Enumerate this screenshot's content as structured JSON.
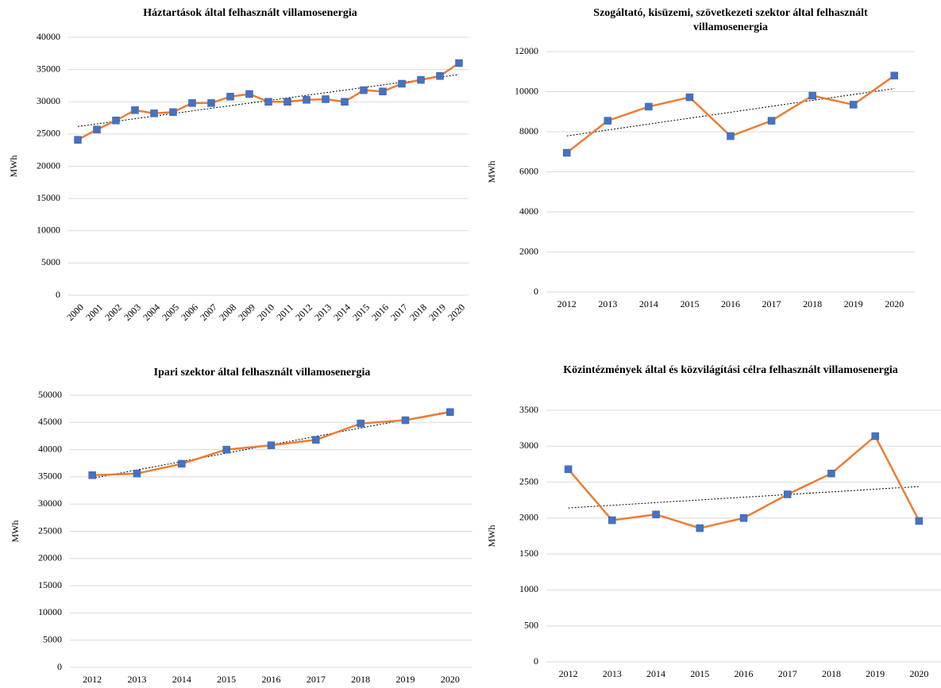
{
  "chart_data": [
    {
      "type": "line",
      "title": "Háztartások által felhasznált villamosenergia",
      "y_label": "MWh",
      "categories": [
        "2000",
        "2001",
        "2002",
        "2003",
        "2004",
        "2005",
        "2006",
        "2007",
        "2008",
        "2009",
        "2010",
        "2011",
        "2012",
        "2013",
        "2014",
        "2015",
        "2016",
        "2017",
        "2018",
        "2019",
        "2020"
      ],
      "values": [
        24100,
        25700,
        27100,
        28700,
        28200,
        28400,
        29800,
        29800,
        30800,
        31200,
        30000,
        30000,
        30300,
        30400,
        30000,
        31800,
        31600,
        32800,
        33400,
        34000,
        36000
      ],
      "color": "#ed7d31",
      "marker_color": "#4472c4",
      "ylim": [
        0,
        40000
      ],
      "yticks": [
        0,
        5000,
        10000,
        15000,
        20000,
        25000,
        30000,
        35000,
        40000
      ],
      "grid": true,
      "trendline": true
    },
    {
      "type": "line",
      "title": "Szogáltató, kisüzemi,  szövetkezeti szektor által felhasznált villamosenergia",
      "y_label": "MWh",
      "categories": [
        "2012",
        "2013",
        "2014",
        "2015",
        "2016",
        "2017",
        "2018",
        "2019",
        "2020"
      ],
      "values": [
        6950,
        8550,
        9250,
        9720,
        7780,
        8550,
        9800,
        9350,
        10800
      ],
      "color": "#ed7d31",
      "marker_color": "#4472c4",
      "ylim": [
        0,
        12000
      ],
      "yticks": [
        0,
        2000,
        4000,
        6000,
        8000,
        10000,
        12000
      ],
      "grid": true,
      "trendline": true
    },
    {
      "type": "line",
      "title": "Ipari szektor által felhasznált villamosenergia",
      "y_label": "MWh",
      "categories": [
        "2012",
        "2013",
        "2014",
        "2015",
        "2016",
        "2017",
        "2018",
        "2019",
        "2020"
      ],
      "values": [
        35300,
        35600,
        37400,
        40000,
        40800,
        41800,
        44800,
        45400,
        46900
      ],
      "color": "#ed7d31",
      "marker_color": "#4472c4",
      "ylim": [
        0,
        50000
      ],
      "yticks": [
        0,
        5000,
        10000,
        15000,
        20000,
        25000,
        30000,
        35000,
        40000,
        45000,
        50000
      ],
      "grid": true,
      "trendline": true
    },
    {
      "type": "line",
      "title": "Közintézmények által és közvilágítási  célra felhasznált villamosenergia",
      "y_label": "MWh",
      "categories": [
        "2012",
        "2013",
        "2014",
        "2015",
        "2016",
        "2017",
        "2018",
        "2019",
        "2020"
      ],
      "values": [
        2680,
        1970,
        2050,
        1860,
        2000,
        2330,
        2620,
        3140,
        1960
      ],
      "color": "#ed7d31",
      "marker_color": "#4472c4",
      "ylim": [
        0,
        3500
      ],
      "yticks": [
        0,
        500,
        1000,
        1500,
        2000,
        2500,
        3000,
        3500
      ],
      "grid": true,
      "trendline": true
    }
  ]
}
